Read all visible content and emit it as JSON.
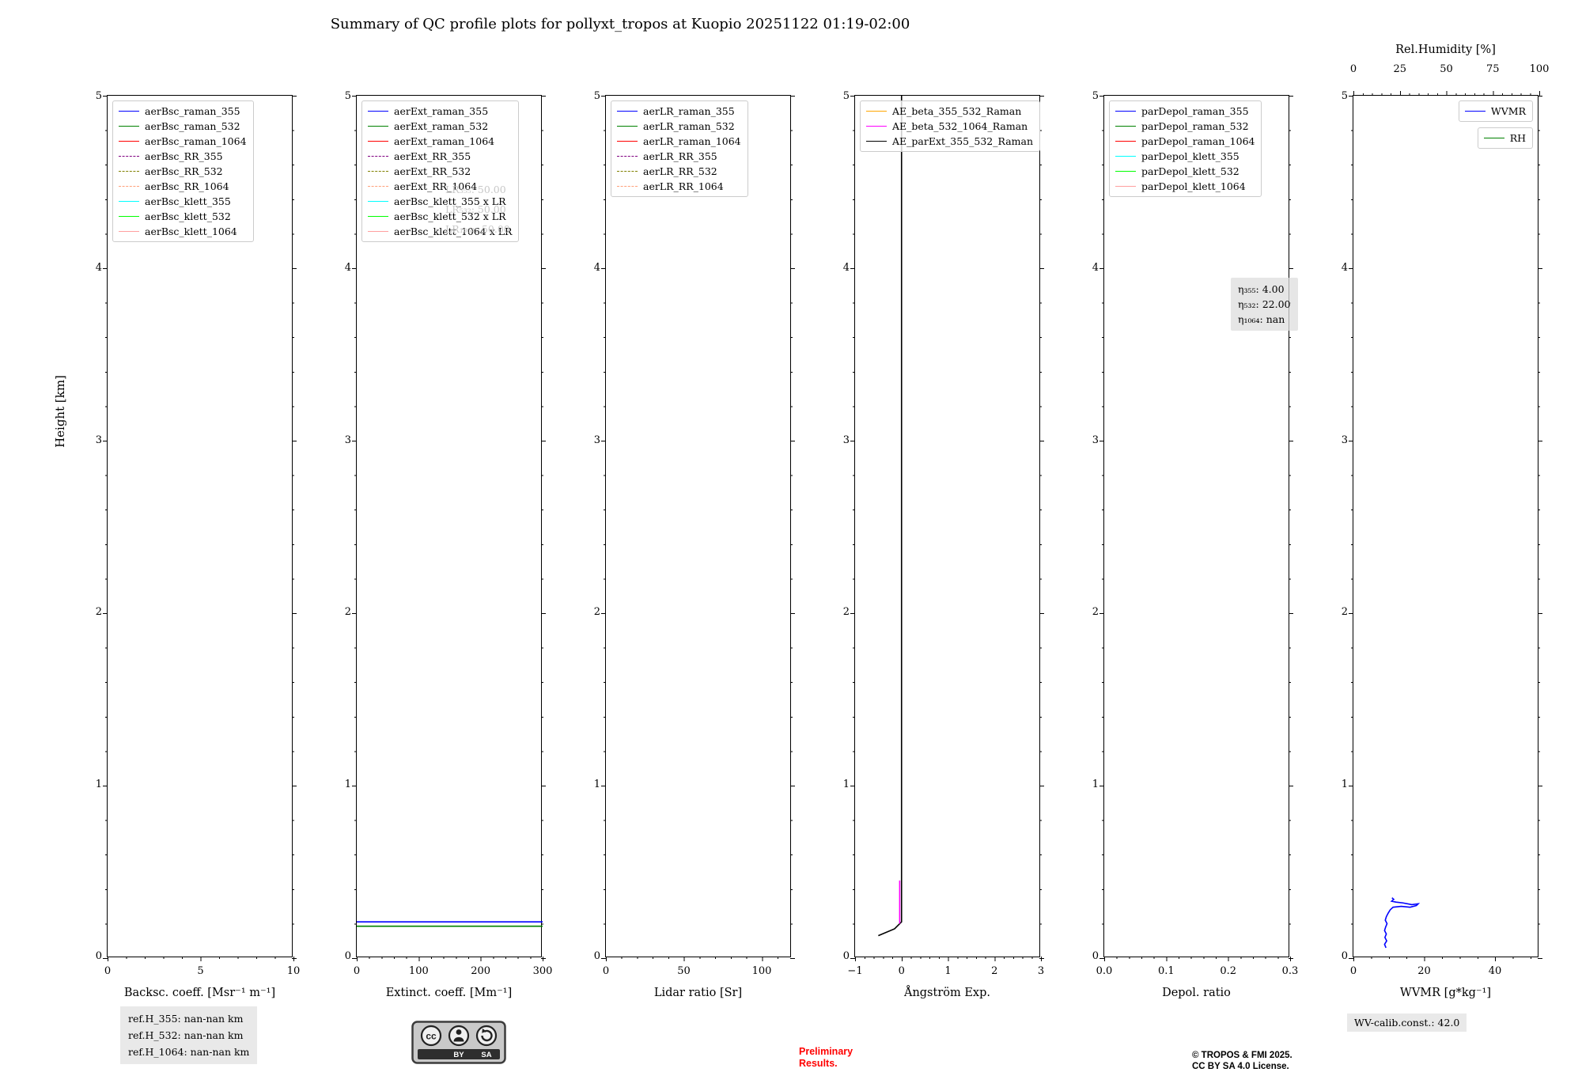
{
  "title": "Summary of QC profile plots for pollyxt_tropos at Kuopio 20251122 01:19-02:00",
  "ylabel": "Height [km]",
  "yticks": [
    "5",
    "4",
    "3",
    "2",
    "1",
    "0"
  ],
  "panels": [
    {
      "name": "backscatter",
      "xlabel": "Backsc. coeff. [Msr⁻¹ m⁻¹]",
      "xticks": [
        "0",
        "5",
        "10"
      ],
      "legend": [
        {
          "label": "aerBsc_raman_355",
          "color": "#0000ff",
          "dash": "solid"
        },
        {
          "label": "aerBsc_raman_532",
          "color": "#008000",
          "dash": "solid"
        },
        {
          "label": "aerBsc_raman_1064",
          "color": "#ff0000",
          "dash": "solid"
        },
        {
          "label": "aerBsc_RR_355",
          "color": "#800080",
          "dash": "dashed"
        },
        {
          "label": "aerBsc_RR_532",
          "color": "#808000",
          "dash": "dashed"
        },
        {
          "label": "aerBsc_RR_1064",
          "color": "#ffa07a",
          "dash": "dashed"
        },
        {
          "label": "aerBsc_klett_355",
          "color": "#00ffff",
          "dash": "solid"
        },
        {
          "label": "aerBsc_klett_532",
          "color": "#00ff00",
          "dash": "solid"
        },
        {
          "label": "aerBsc_klett_1064",
          "color": "#ff9f9f",
          "dash": "solid"
        }
      ]
    },
    {
      "name": "extinction",
      "xlabel": "Extinct. coeff. [Mm⁻¹]",
      "xticks": [
        "0",
        "100",
        "200",
        "300"
      ],
      "lr_note": [
        "LR₃₅₅: 50.00",
        "LR₅₃₂: 50.00",
        "LR₁₀₆₄: 50.00"
      ],
      "legend": [
        {
          "label": "aerExt_raman_355",
          "color": "#0000ff",
          "dash": "solid"
        },
        {
          "label": "aerExt_raman_532",
          "color": "#008000",
          "dash": "solid"
        },
        {
          "label": "aerExt_raman_1064",
          "color": "#ff0000",
          "dash": "solid"
        },
        {
          "label": "aerExt_RR_355",
          "color": "#800080",
          "dash": "dashed"
        },
        {
          "label": "aerExt_RR_532",
          "color": "#808000",
          "dash": "dashed"
        },
        {
          "label": "aerExt_RR_1064",
          "color": "#ffa07a",
          "dash": "dashed"
        },
        {
          "label": "aerBsc_klett_355 x LR",
          "color": "#00ffff",
          "dash": "solid"
        },
        {
          "label": "aerBsc_klett_532 x LR",
          "color": "#00ff00",
          "dash": "solid"
        },
        {
          "label": "aerBsc_klett_1064 x LR",
          "color": "#ff9f9f",
          "dash": "solid"
        }
      ]
    },
    {
      "name": "lidar-ratio",
      "xlabel": "Lidar ratio [Sr]",
      "xticks": [
        "0",
        "50",
        "100"
      ],
      "legend": [
        {
          "label": "aerLR_raman_355",
          "color": "#0000ff",
          "dash": "solid"
        },
        {
          "label": "aerLR_raman_532",
          "color": "#008000",
          "dash": "solid"
        },
        {
          "label": "aerLR_raman_1064",
          "color": "#ff0000",
          "dash": "solid"
        },
        {
          "label": "aerLR_RR_355",
          "color": "#800080",
          "dash": "dashed"
        },
        {
          "label": "aerLR_RR_532",
          "color": "#808000",
          "dash": "dashed"
        },
        {
          "label": "aerLR_RR_1064",
          "color": "#ffa07a",
          "dash": "dashed"
        }
      ]
    },
    {
      "name": "angstrom",
      "xlabel": "Ångström Exp.",
      "xticks": [
        "−1",
        "0",
        "1",
        "2",
        "3"
      ],
      "legend": [
        {
          "label": "AE_beta_355_532_Raman",
          "color": "#ffa500",
          "dash": "solid"
        },
        {
          "label": "AE_beta_532_1064_Raman",
          "color": "#ff00ff",
          "dash": "solid"
        },
        {
          "label": "AE_parExt_355_532_Raman",
          "color": "#000000",
          "dash": "solid"
        }
      ]
    },
    {
      "name": "depol",
      "xlabel": "Depol. ratio",
      "xticks": [
        "0.0",
        "0.1",
        "0.2",
        "0.3"
      ],
      "eta": [
        "η₃₅₅: 4.00",
        "η₅₃₂: 22.00",
        "η₁₀₆₄: nan"
      ],
      "legend": [
        {
          "label": "parDepol_raman_355",
          "color": "#0000ff",
          "dash": "solid"
        },
        {
          "label": "parDepol_raman_532",
          "color": "#008000",
          "dash": "solid"
        },
        {
          "label": "parDepol_raman_1064",
          "color": "#ff0000",
          "dash": "solid"
        },
        {
          "label": "parDepol_klett_355",
          "color": "#00ffff",
          "dash": "solid"
        },
        {
          "label": "parDepol_klett_532",
          "color": "#00ff00",
          "dash": "solid"
        },
        {
          "label": "parDepol_klett_1064",
          "color": "#ff9f9f",
          "dash": "solid"
        }
      ]
    },
    {
      "name": "wvmr",
      "xlabel": "WVMR [g*kg⁻¹]",
      "xticks": [
        "0",
        "20",
        "40"
      ],
      "top_label": "Rel.Humidity [%]",
      "top_xticks": [
        "0",
        "25",
        "50",
        "75",
        "100"
      ],
      "legend": [
        {
          "label": "WVMR",
          "color": "#0000ff",
          "dash": "solid"
        }
      ],
      "legend2": [
        {
          "label": "RH",
          "color": "#008000",
          "dash": "solid"
        }
      ]
    }
  ],
  "chart_data": [
    {
      "type": "line",
      "xlabel": "Backsc. coeff. [Msr⁻¹ m⁻¹]",
      "ylabel": "Height [km]",
      "xlim": [
        0,
        10
      ],
      "ylim": [
        0,
        5
      ],
      "grid": false,
      "legend_position": "upper left",
      "series": []
    },
    {
      "type": "line",
      "xlabel": "Extinct. coeff. [Mm⁻¹]",
      "ylabel": "Height [km]",
      "xlim": [
        0,
        300
      ],
      "ylim": [
        0,
        5
      ],
      "grid": false,
      "legend_position": "upper left",
      "series": [
        {
          "name": "aerBsc_klett_355 x LR",
          "color": "#0000ff",
          "dash": "solid",
          "points": [
            [
              0,
              0.21
            ],
            [
              300,
              0.21
            ]
          ]
        },
        {
          "name": "aerBsc_klett_532 x LR",
          "color": "#008000",
          "dash": "solid",
          "points": [
            [
              0,
              0.185
            ],
            [
              300,
              0.185
            ]
          ]
        }
      ]
    },
    {
      "type": "line",
      "xlabel": "Lidar ratio [Sr]",
      "ylabel": "Height [km]",
      "xlim": [
        0,
        119
      ],
      "ylim": [
        0,
        5
      ],
      "grid": false,
      "legend_position": "upper left",
      "series": []
    },
    {
      "type": "line",
      "xlabel": "Ångström Exp.",
      "ylabel": "Height [km]",
      "xlim": [
        -1,
        3
      ],
      "ylim": [
        0,
        5
      ],
      "grid": false,
      "legend_position": "upper left",
      "series": [
        {
          "name": "AE_parExt_355_532_Raman",
          "color": "#000000",
          "dash": "solid",
          "points": [
            [
              -0.5,
              0.13
            ],
            [
              -0.15,
              0.17
            ],
            [
              0,
              0.21
            ],
            [
              0,
              5
            ]
          ]
        },
        {
          "name": "AE_beta_532_1064_Raman",
          "color": "#ff00ff",
          "dash": "solid",
          "points": [
            [
              -0.04,
              0.2
            ],
            [
              -0.04,
              0.45
            ]
          ]
        }
      ]
    },
    {
      "type": "line",
      "xlabel": "Depol. ratio",
      "ylabel": "Height [km]",
      "xlim": [
        0,
        0.3
      ],
      "ylim": [
        0,
        5
      ],
      "grid": false,
      "legend_position": "upper left",
      "annotations": [
        "η₃₅₅: 4.00",
        "η₅₃₂: 22.00",
        "η₁₀₆₄: nan"
      ],
      "series": []
    },
    {
      "type": "line",
      "xlabel": "WVMR [g*kg⁻¹]",
      "x2label": "Rel.Humidity [%]",
      "ylabel": "Height [km]",
      "xlim": [
        0,
        52.5
      ],
      "x2lim": [
        0,
        100
      ],
      "ylim": [
        0,
        5
      ],
      "grid": false,
      "legend_position": "upper right",
      "series": [
        {
          "name": "WVMR",
          "color": "#0000ff",
          "dash": "solid",
          "points": [
            [
              9.2,
              0.06
            ],
            [
              8.8,
              0.08
            ],
            [
              9.4,
              0.1
            ],
            [
              8.9,
              0.12
            ],
            [
              9.3,
              0.14
            ],
            [
              8.8,
              0.16
            ],
            [
              9.1,
              0.18
            ],
            [
              9.5,
              0.2
            ],
            [
              9.0,
              0.22
            ],
            [
              9.3,
              0.24
            ],
            [
              9.8,
              0.26
            ],
            [
              10.4,
              0.28
            ],
            [
              11.2,
              0.295
            ],
            [
              13.5,
              0.3
            ],
            [
              16.0,
              0.295
            ],
            [
              17.8,
              0.305
            ],
            [
              18.3,
              0.315
            ],
            [
              16.5,
              0.31
            ],
            [
              14.0,
              0.32
            ],
            [
              12.0,
              0.325
            ],
            [
              10.8,
              0.33
            ],
            [
              11.4,
              0.34
            ],
            [
              10.9,
              0.35
            ]
          ]
        },
        {
          "name": "RH",
          "color": "#008000",
          "dash": "solid",
          "points": []
        }
      ]
    }
  ],
  "footer": {
    "ref_heights": [
      "ref.H_355: nan-nan km",
      "ref.H_532: nan-nan km",
      "ref.H_1064: nan-nan km"
    ],
    "preliminary": [
      "Preliminary",
      "Results."
    ],
    "copyright": [
      "© TROPOS & FMI 2025.",
      "CC BY SA 4.0 License."
    ],
    "wv_calib": "WV-calib.const.: 42.0",
    "badge": {
      "cc": "cc",
      "by": "BY",
      "sa": "SA"
    }
  }
}
